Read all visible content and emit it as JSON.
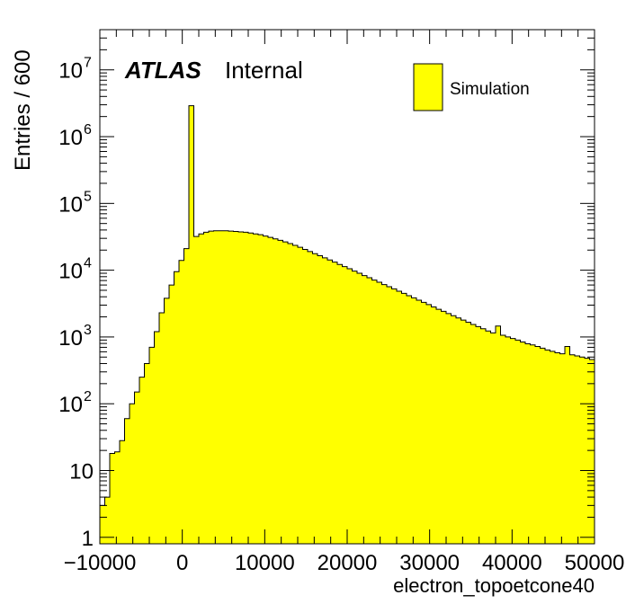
{
  "chart_data": {
    "type": "histogram",
    "xlabel": "electron_topoetcone40",
    "ylabel": "Entries / 600",
    "atlas_label": "ATLAS",
    "atlas_sub": "Internal",
    "log_y": true,
    "xlim": [
      -10000,
      50000
    ],
    "ylim": [
      0.8,
      40000000
    ],
    "bin_width": 600,
    "x_tick_labels": [
      "−10000",
      "0",
      "10000",
      "20000",
      "30000",
      "40000",
      "50000"
    ],
    "y_tick_labels": [
      "1",
      "10",
      "10",
      "10",
      "10",
      "10",
      "10",
      "10"
    ],
    "y_tick_exponents": [
      "",
      "",
      "2",
      "3",
      "4",
      "5",
      "6",
      "7"
    ],
    "fill_color": "#ffff00",
    "series": [
      {
        "name": "Simulation",
        "bin_edges_start": -10000,
        "values": [
          3,
          4,
          18,
          19,
          28,
          60,
          100,
          150,
          250,
          400,
          700,
          1200,
          2300,
          3800,
          6000,
          9500,
          14000,
          21000,
          2900000,
          32000,
          35000,
          37000,
          38500,
          39000,
          39000,
          39000,
          38500,
          38000,
          37500,
          37000,
          36000,
          35000,
          34000,
          32500,
          31000,
          29500,
          28000,
          26500,
          25000,
          23500,
          22000,
          20500,
          19000,
          17700,
          16500,
          15300,
          14200,
          13200,
          12200,
          11300,
          10500,
          9700,
          9000,
          8300,
          7700,
          7100,
          6600,
          6100,
          5650,
          5250,
          4850,
          4500,
          4150,
          3850,
          3550,
          3300,
          3050,
          2820,
          2600,
          2420,
          2240,
          2080,
          1930,
          1790,
          1660,
          1540,
          1430,
          1330,
          1230,
          1150,
          1460,
          1060,
          1000,
          950,
          900,
          840,
          790,
          760,
          720,
          680,
          640,
          610,
          580,
          560,
          720,
          540,
          520,
          500,
          480,
          460
        ]
      }
    ]
  }
}
